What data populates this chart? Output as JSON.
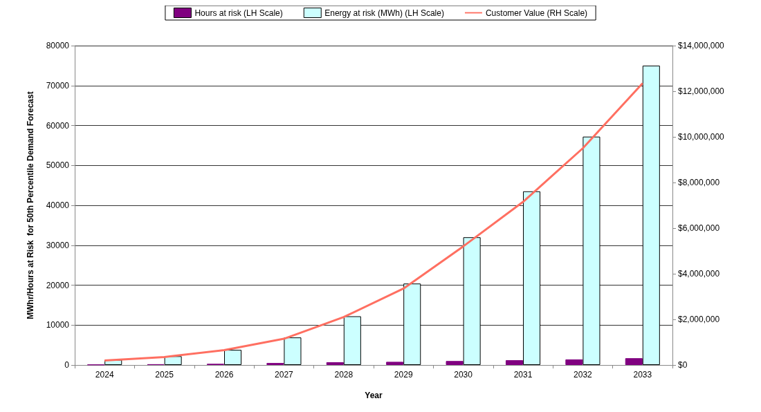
{
  "chart_data": {
    "type": "bar",
    "xlabel": "Year",
    "ylabel": "MWhr/Hours at Risk  for 50th Percentile Demand Forecast",
    "categories": [
      "2024",
      "2025",
      "2026",
      "2027",
      "2028",
      "2029",
      "2030",
      "2031",
      "2032",
      "2033"
    ],
    "series": [
      {
        "name": "Hours at risk (LH Scale)",
        "color": "#800080",
        "values": [
          100,
          200,
          300,
          500,
          700,
          800,
          1000,
          1200,
          1400,
          1700
        ]
      },
      {
        "name": "Energy at risk (MWh) (LH Scale)",
        "color": "#ccffff",
        "values": [
          1300,
          2200,
          3800,
          6900,
          12200,
          20400,
          32000,
          43500,
          57200,
          75000
        ]
      },
      {
        "name": "Customer Value (RH Scale)",
        "type": "line",
        "axis": "y2",
        "color": "#ff6f61",
        "values": [
          200000,
          350000,
          650000,
          1150000,
          2100000,
          3350000,
          5200000,
          7150000,
          9500000,
          12350000
        ]
      }
    ],
    "ylim": [
      0,
      80000
    ],
    "yticks": [
      0,
      10000,
      20000,
      30000,
      40000,
      50000,
      60000,
      70000,
      80000
    ],
    "y2lim": [
      0,
      14000000
    ],
    "y2ticks": [
      {
        "value": 0,
        "label": "$0"
      },
      {
        "value": 2000000,
        "label": "$2,000,000"
      },
      {
        "value": 4000000,
        "label": "$4,000,000"
      },
      {
        "value": 6000000,
        "label": "$6,000,000"
      },
      {
        "value": 8000000,
        "label": "$8,000,000"
      },
      {
        "value": 10000000,
        "label": "$10,000,000"
      },
      {
        "value": 12000000,
        "label": "$12,000,000"
      },
      {
        "value": 14000000,
        "label": "$14,000,000"
      }
    ],
    "grid": "y",
    "legend": "top",
    "marker": "none"
  }
}
